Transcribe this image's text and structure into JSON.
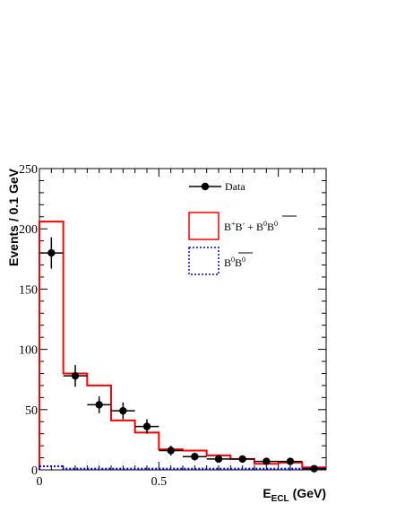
{
  "chart_data": {
    "type": "histogram",
    "xlabel": "E",
    "xlabel_sub": "ECL",
    "xlabel_unit": "(GeV)",
    "ylabel": "Events / 0.1 GeV",
    "xlim": [
      0,
      1.2
    ],
    "ylim": [
      0,
      250
    ],
    "x_ticks": [
      0,
      0.5
    ],
    "x_tick_labels": [
      "0",
      "0.5"
    ],
    "y_ticks": [
      0,
      50,
      100,
      150,
      200,
      250
    ],
    "y_tick_labels": [
      "0",
      "50",
      "100",
      "150",
      "200",
      "250"
    ],
    "bin_edges": [
      0,
      0.1,
      0.2,
      0.3,
      0.4,
      0.5,
      0.6,
      0.7,
      0.8,
      0.9,
      1.0,
      1.1,
      1.2
    ],
    "series": [
      {
        "name": "Data",
        "kind": "points",
        "color": "#000000",
        "x": [
          0.05,
          0.15,
          0.25,
          0.35,
          0.45,
          0.55,
          0.65,
          0.75,
          0.85,
          0.95,
          1.05,
          1.15
        ],
        "y": [
          180,
          78,
          54,
          49,
          36,
          16,
          11,
          9,
          9,
          7,
          7,
          1
        ],
        "yerr": [
          13,
          9,
          7,
          7,
          6,
          4,
          3.3,
          3,
          3,
          2.6,
          2.6,
          1
        ]
      },
      {
        "name": "B+B- + B0B0bar",
        "kind": "step",
        "color": "#ff0000",
        "values": [
          206,
          80,
          70,
          41,
          31,
          17,
          16,
          12,
          9,
          5,
          6,
          2
        ]
      },
      {
        "name": "B0B0bar",
        "kind": "step",
        "color": "#0000ff",
        "dashed": true,
        "values": [
          3,
          1,
          1,
          1,
          1,
          1,
          1,
          1,
          1,
          1,
          1,
          1
        ]
      }
    ],
    "legend": {
      "position": "top-right",
      "items": [
        {
          "label": "Data",
          "style": "marker"
        },
        {
          "label_parts": [
            "B",
            "+",
            "B",
            "-",
            " + B",
            "0",
            "B",
            "0"
          ],
          "style": "box",
          "color": "#ff0000"
        },
        {
          "label_parts": [
            "B",
            "0",
            "B",
            "0"
          ],
          "style": "dashed-box",
          "color": "#0000ff"
        }
      ]
    }
  }
}
